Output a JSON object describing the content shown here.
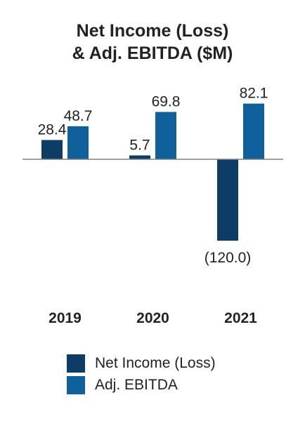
{
  "chart_data": {
    "type": "bar",
    "title_lines": [
      "Net Income (Loss)",
      "& Adj. EBITDA ($M)"
    ],
    "categories": [
      "2019",
      "2020",
      "2021"
    ],
    "series": [
      {
        "name": "Net Income (Loss)",
        "values": [
          28.4,
          5.7,
          -120.0
        ],
        "labels": [
          "28.4",
          "5.7",
          "(120.0)"
        ],
        "color": "#0d3d66"
      },
      {
        "name": "Adj. EBITDA",
        "values": [
          48.7,
          69.8,
          82.1
        ],
        "labels": [
          "48.7",
          "69.8",
          "82.1"
        ],
        "color": "#0f609b"
      }
    ],
    "ylim": [
      -120,
      82.1
    ],
    "zero_line_color": "#808080",
    "grid": false,
    "legend": "bottom"
  }
}
